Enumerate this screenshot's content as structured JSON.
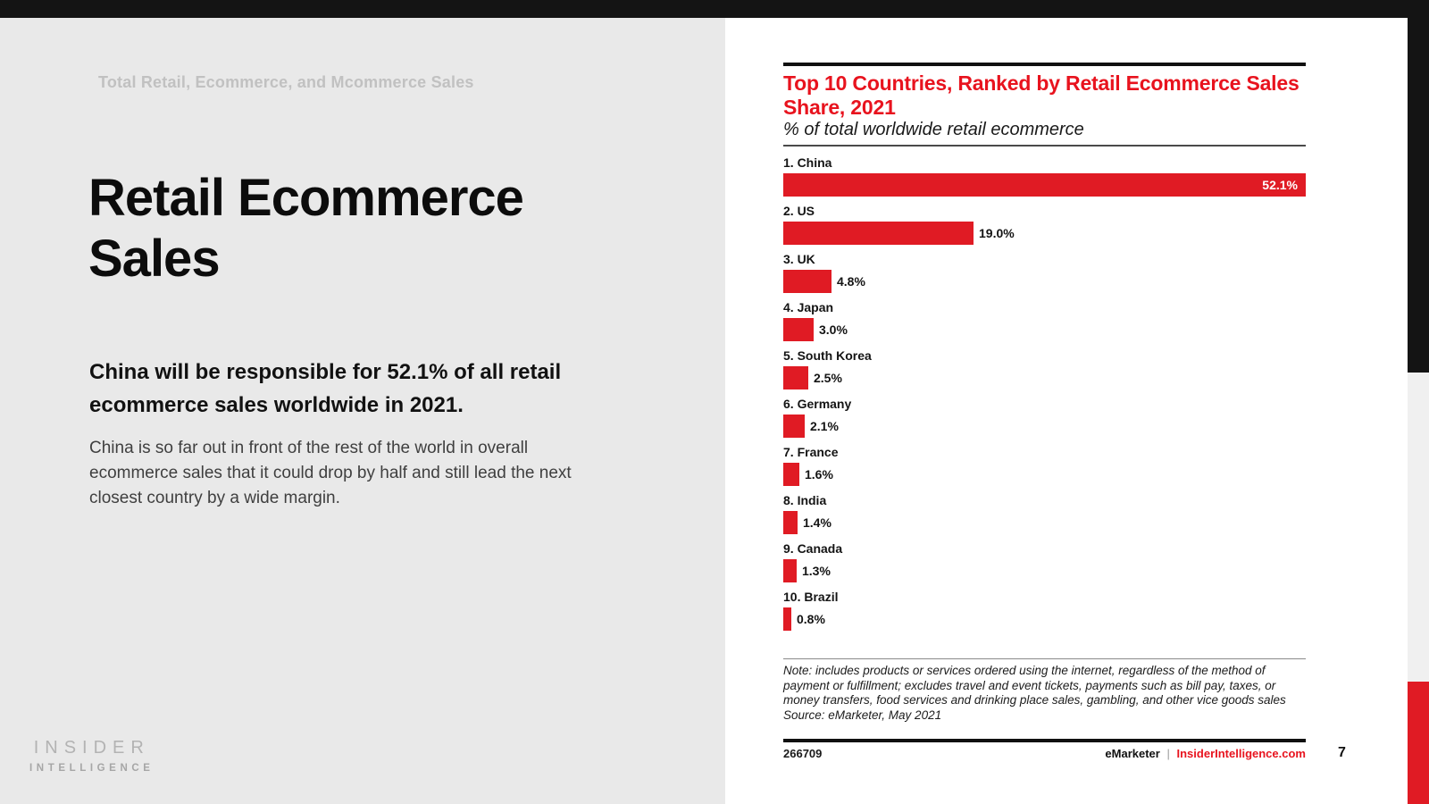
{
  "page": {
    "number": "7"
  },
  "colors": {
    "accent_red": "#e01b24",
    "title_red": "#e8131e",
    "bar_black": "#141414",
    "left_panel_bg": "#e9e9e9"
  },
  "left_panel": {
    "eyebrow": "Total Retail, Ecommerce, and Mcommerce Sales",
    "title": "Retail Ecommerce Sales",
    "statement": "China will be responsible for 52.1% of all retail ecommerce sales worldwide in 2021.",
    "body": "China is so far out in front of the rest of the world in overall ecommerce sales that it could drop by half and still lead the next closest country by a wide margin.",
    "logo_line1": "INSIDER",
    "logo_line2": "INTELLIGENCE"
  },
  "chart": {
    "title": "Top 10 Countries, Ranked by Retail Ecommerce Sales Share, 2021",
    "subtitle": "% of total worldwide retail ecommerce",
    "note": "Note: includes products or services ordered using the internet, regardless of the method of payment or fulfillment; excludes travel and event tickets, payments such as bill pay, taxes, or money transfers, food services and drinking place sales, gambling, and other vice goods sales",
    "source": "Source: eMarketer, May 2021",
    "chart_id": "266709",
    "footer_brand": "eMarketer",
    "footer_separator": "|",
    "footer_site": "InsiderIntelligence.com"
  },
  "chart_data": {
    "type": "bar",
    "orientation": "horizontal",
    "title": "Top 10 Countries, Ranked by Retail Ecommerce Sales Share, 2021",
    "subtitle": "% of total worldwide retail ecommerce",
    "xlabel": "",
    "ylabel": "",
    "xlim": [
      0,
      52.1
    ],
    "grid": false,
    "legend": "none",
    "bar_color": "#e01b24",
    "categories": [
      "1. China",
      "2. US",
      "3. UK",
      "4. Japan",
      "5. South Korea",
      "6. Germany",
      "7. France",
      "8. India",
      "9. Canada",
      "10. Brazil"
    ],
    "values": [
      52.1,
      19.0,
      4.8,
      3.0,
      2.5,
      2.1,
      1.6,
      1.4,
      1.3,
      0.8
    ],
    "value_labels": [
      "52.1%",
      "19.0%",
      "4.8%",
      "3.0%",
      "2.5%",
      "2.1%",
      "1.6%",
      "1.4%",
      "1.3%",
      "0.8%"
    ]
  }
}
